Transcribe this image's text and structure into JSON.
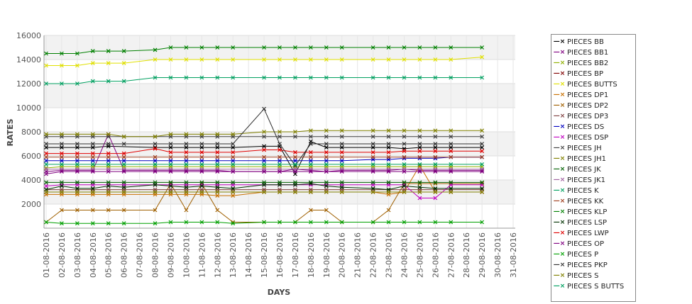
{
  "chart_data": {
    "type": "line",
    "xlabel": "DAYS",
    "ylabel": "RATES",
    "ylim": [
      0,
      16000
    ],
    "yticks": [
      2000,
      4000,
      6000,
      8000,
      10000,
      12000,
      14000,
      16000
    ],
    "categories": [
      "01-08-2016",
      "02-08-2016",
      "03-08-2016",
      "04-08-2016",
      "05-08-2016",
      "06-08-2016",
      "07-08-2016",
      "08-08-2016",
      "09-08-2016",
      "10-08-2016",
      "11-08-2016",
      "12-08-2016",
      "13-08-2016",
      "14-08-2016",
      "15-08-2016",
      "16-08-2016",
      "17-08-2016",
      "18-08-2016",
      "19-08-2016",
      "20-08-2016",
      "21-08-2016",
      "22-08-2016",
      "23-08-2016",
      "24-08-2016",
      "25-08-2016",
      "26-08-2016",
      "27-08-2016",
      "28-08-2016",
      "29-08-2016",
      "30-08-2016",
      "31-08-2016"
    ],
    "grid": true,
    "legend_position": "right",
    "series": [
      {
        "name": "PIECES BB",
        "color": "#000000",
        "values": [
          6700,
          6700,
          6700,
          6700,
          6800,
          null,
          null,
          6700,
          6700,
          6700,
          6700,
          6700,
          6700,
          null,
          6800,
          6800,
          4500,
          7200,
          6700,
          6700,
          null,
          6700,
          6700,
          6600,
          6700,
          6700,
          6700,
          null,
          6700,
          null,
          null
        ]
      },
      {
        "name": "PIECES BB1",
        "color": "#800080",
        "values": [
          4700,
          4800,
          4800,
          4800,
          7800,
          4800,
          null,
          4800,
          4800,
          4800,
          4800,
          4800,
          4700,
          null,
          4700,
          4700,
          4900,
          4800,
          4700,
          4800,
          null,
          4800,
          4800,
          4900,
          4800,
          4800,
          4800,
          null,
          4800,
          null,
          null
        ]
      },
      {
        "name": "PIECES BB2",
        "color": "#90b000",
        "values": [
          5000,
          5100,
          5100,
          5100,
          5100,
          5100,
          null,
          5100,
          5100,
          5100,
          5100,
          5100,
          5100,
          null,
          5100,
          5100,
          5100,
          5100,
          5100,
          5100,
          null,
          5100,
          5100,
          5100,
          5100,
          5100,
          5100,
          null,
          5100,
          null,
          null
        ]
      },
      {
        "name": "PIECES BP",
        "color": "#800000",
        "values": [
          3000,
          3000,
          3000,
          3000,
          3000,
          3000,
          null,
          3000,
          3000,
          3000,
          3000,
          3000,
          3000,
          null,
          3000,
          3000,
          3000,
          3000,
          3000,
          3000,
          null,
          3000,
          3000,
          3000,
          3000,
          3000,
          3000,
          null,
          3000,
          null,
          null
        ]
      },
      {
        "name": "PIECES BUTTS",
        "color": "#e0e000",
        "values": [
          13500,
          13500,
          13500,
          13700,
          13700,
          13700,
          null,
          14000,
          14000,
          14000,
          14000,
          14000,
          14000,
          null,
          14000,
          14000,
          14000,
          14000,
          14000,
          14000,
          null,
          14000,
          14000,
          14000,
          14000,
          14000,
          14000,
          null,
          14200,
          null,
          null
        ]
      },
      {
        "name": "PIECES DP1",
        "color": "#c87000",
        "values": [
          2800,
          2800,
          2800,
          2800,
          2800,
          2800,
          null,
          2800,
          2800,
          2800,
          2800,
          2700,
          2700,
          null,
          3000,
          3000,
          3000,
          3000,
          3000,
          3000,
          null,
          3000,
          2800,
          3000,
          5200,
          3000,
          3000,
          null,
          3000,
          null,
          null
        ]
      },
      {
        "name": "PIECES DP2",
        "color": "#a06000",
        "values": [
          500,
          1500,
          1500,
          1500,
          1500,
          1500,
          null,
          1500,
          3700,
          1500,
          3700,
          1500,
          500,
          null,
          500,
          500,
          500,
          1500,
          1500,
          500,
          null,
          500,
          1500,
          3700,
          3700,
          3700,
          3700,
          null,
          3700,
          null,
          null
        ]
      },
      {
        "name": "PIECES DP3",
        "color": "#804040",
        "values": [
          3200,
          3200,
          3200,
          3200,
          3200,
          3200,
          null,
          3200,
          3200,
          3200,
          3200,
          3200,
          3200,
          null,
          3200,
          3200,
          3200,
          3200,
          3200,
          3200,
          null,
          3200,
          3200,
          3200,
          3200,
          3200,
          3200,
          null,
          3200,
          null,
          null
        ]
      },
      {
        "name": "PIECES DS",
        "color": "#0000c0",
        "values": [
          5600,
          5600,
          5600,
          5600,
          5600,
          5600,
          null,
          5600,
          5600,
          5600,
          5600,
          5600,
          5600,
          null,
          5600,
          5600,
          5600,
          5600,
          5600,
          5600,
          null,
          5700,
          5700,
          5800,
          5800,
          5800,
          5900,
          null,
          5900,
          null,
          null
        ]
      },
      {
        "name": "PIECES DSP",
        "color": "#c000c0",
        "values": [
          3500,
          3600,
          3600,
          3600,
          3600,
          3600,
          null,
          3600,
          3600,
          3600,
          3600,
          3600,
          3600,
          null,
          3600,
          3600,
          3600,
          3600,
          3600,
          3600,
          null,
          3600,
          3600,
          3600,
          2500,
          2500,
          3600,
          null,
          3600,
          null,
          null
        ]
      },
      {
        "name": "PIECES JH",
        "color": "#404040",
        "values": [
          7600,
          7600,
          7600,
          7600,
          7600,
          7600,
          null,
          7600,
          7600,
          7600,
          7600,
          7600,
          7600,
          null,
          7600,
          7600,
          7600,
          7600,
          7600,
          7600,
          null,
          7600,
          7600,
          7600,
          7600,
          7600,
          7600,
          null,
          7600,
          null,
          null
        ]
      },
      {
        "name": "PIECES JH1",
        "color": "#808000",
        "values": [
          7800,
          7800,
          7800,
          7800,
          7800,
          7600,
          null,
          7600,
          7800,
          7800,
          7800,
          7800,
          7800,
          null,
          8000,
          8000,
          8000,
          8100,
          8100,
          8100,
          null,
          8100,
          8100,
          8100,
          8100,
          8100,
          8100,
          null,
          8100,
          null,
          null
        ]
      },
      {
        "name": "PIECES JK",
        "color": "#006000",
        "values": [
          3800,
          3800,
          3800,
          3800,
          3800,
          3800,
          null,
          3800,
          3800,
          3800,
          3800,
          3800,
          3800,
          null,
          3800,
          3800,
          3800,
          3800,
          3800,
          3800,
          null,
          3800,
          3800,
          3800,
          3800,
          3800,
          3800,
          null,
          3800,
          null,
          null
        ]
      },
      {
        "name": "PIECES JK1",
        "color": "#a060a0",
        "values": [
          4900,
          4900,
          4900,
          4900,
          4900,
          4900,
          null,
          4900,
          4900,
          4900,
          4900,
          4900,
          4900,
          null,
          4900,
          4900,
          4900,
          4900,
          4900,
          4900,
          null,
          4900,
          4900,
          4900,
          4900,
          4900,
          4900,
          null,
          4900,
          null,
          null
        ]
      },
      {
        "name": "PIECES K",
        "color": "#00a060",
        "values": [
          12000,
          12000,
          12000,
          12200,
          12200,
          12200,
          null,
          12500,
          12500,
          12500,
          12500,
          12500,
          12500,
          null,
          12500,
          12500,
          12500,
          12500,
          12500,
          12500,
          null,
          12500,
          12500,
          12500,
          12500,
          12500,
          12500,
          null,
          12500,
          null,
          null
        ]
      },
      {
        "name": "PIECES KK",
        "color": "#a04020",
        "values": [
          5900,
          5900,
          5900,
          5900,
          5900,
          5900,
          null,
          5900,
          5900,
          5900,
          5900,
          5900,
          5900,
          null,
          5900,
          5900,
          5900,
          5900,
          5900,
          5900,
          null,
          5900,
          5900,
          5900,
          5900,
          5900,
          5900,
          null,
          5900,
          null,
          null
        ]
      },
      {
        "name": "PIECES KLP",
        "color": "#008000",
        "values": [
          14500,
          14500,
          14500,
          14700,
          14700,
          14700,
          null,
          14800,
          15000,
          15000,
          15000,
          15000,
          15000,
          null,
          15000,
          15000,
          15000,
          15000,
          15000,
          15000,
          null,
          15000,
          15000,
          15000,
          15000,
          15000,
          15000,
          null,
          15000,
          null,
          null
        ]
      },
      {
        "name": "PIECES LSP",
        "color": "#003000",
        "values": [
          3200,
          3500,
          3300,
          3300,
          3500,
          3400,
          null,
          3600,
          3500,
          3400,
          3500,
          3400,
          3300,
          null,
          3600,
          3600,
          3600,
          3700,
          3500,
          3400,
          null,
          3300,
          3200,
          3500,
          3400,
          3300,
          3300,
          null,
          3300,
          null,
          null
        ]
      },
      {
        "name": "PIECES LWP",
        "color": "#e00000",
        "values": [
          6200,
          6200,
          6200,
          6200,
          6200,
          6200,
          null,
          6600,
          6300,
          6300,
          6300,
          6300,
          6300,
          null,
          6500,
          6500,
          6300,
          6300,
          6300,
          6300,
          null,
          6300,
          6300,
          6400,
          6400,
          6400,
          6400,
          null,
          6400,
          null,
          null
        ]
      },
      {
        "name": "PIECES OP",
        "color": "#800080",
        "values": [
          4500,
          4700,
          4700,
          4700,
          4700,
          4700,
          null,
          4700,
          4700,
          4700,
          4700,
          4700,
          4700,
          null,
          4700,
          4700,
          4700,
          4700,
          4700,
          4700,
          null,
          4700,
          4700,
          4700,
          4700,
          4700,
          4700,
          null,
          4700,
          null,
          null
        ]
      },
      {
        "name": "PIECES P",
        "color": "#00a000",
        "values": [
          500,
          400,
          400,
          400,
          400,
          400,
          null,
          400,
          500,
          500,
          500,
          500,
          400,
          null,
          500,
          500,
          500,
          500,
          500,
          500,
          null,
          500,
          500,
          500,
          500,
          500,
          500,
          null,
          500,
          null,
          null
        ]
      },
      {
        "name": "PIECES PKP",
        "color": "#303030",
        "values": [
          7000,
          7000,
          7000,
          7000,
          7000,
          7000,
          null,
          7000,
          7000,
          7000,
          7000,
          7000,
          7000,
          null,
          9900,
          7000,
          5200,
          7000,
          7000,
          7000,
          null,
          7000,
          7000,
          7000,
          7000,
          7000,
          7000,
          null,
          7000,
          null,
          null
        ]
      },
      {
        "name": "PIECES S",
        "color": "#808000",
        "values": [
          3000,
          3000,
          3000,
          3000,
          3000,
          3000,
          null,
          3000,
          3000,
          3000,
          3000,
          3000,
          3000,
          null,
          3000,
          3000,
          3000,
          3000,
          3000,
          3000,
          null,
          3000,
          3000,
          3000,
          3000,
          3000,
          3000,
          null,
          3000,
          null,
          null
        ]
      },
      {
        "name": "PIECES S BUTTS",
        "color": "#00a060",
        "values": [
          5300,
          5300,
          5300,
          5300,
          5300,
          5300,
          null,
          5300,
          5300,
          5300,
          5300,
          5300,
          5300,
          null,
          5300,
          5300,
          5300,
          5300,
          5300,
          5300,
          null,
          5300,
          5300,
          5300,
          5300,
          5300,
          5300,
          null,
          5300,
          null,
          null
        ]
      }
    ]
  }
}
